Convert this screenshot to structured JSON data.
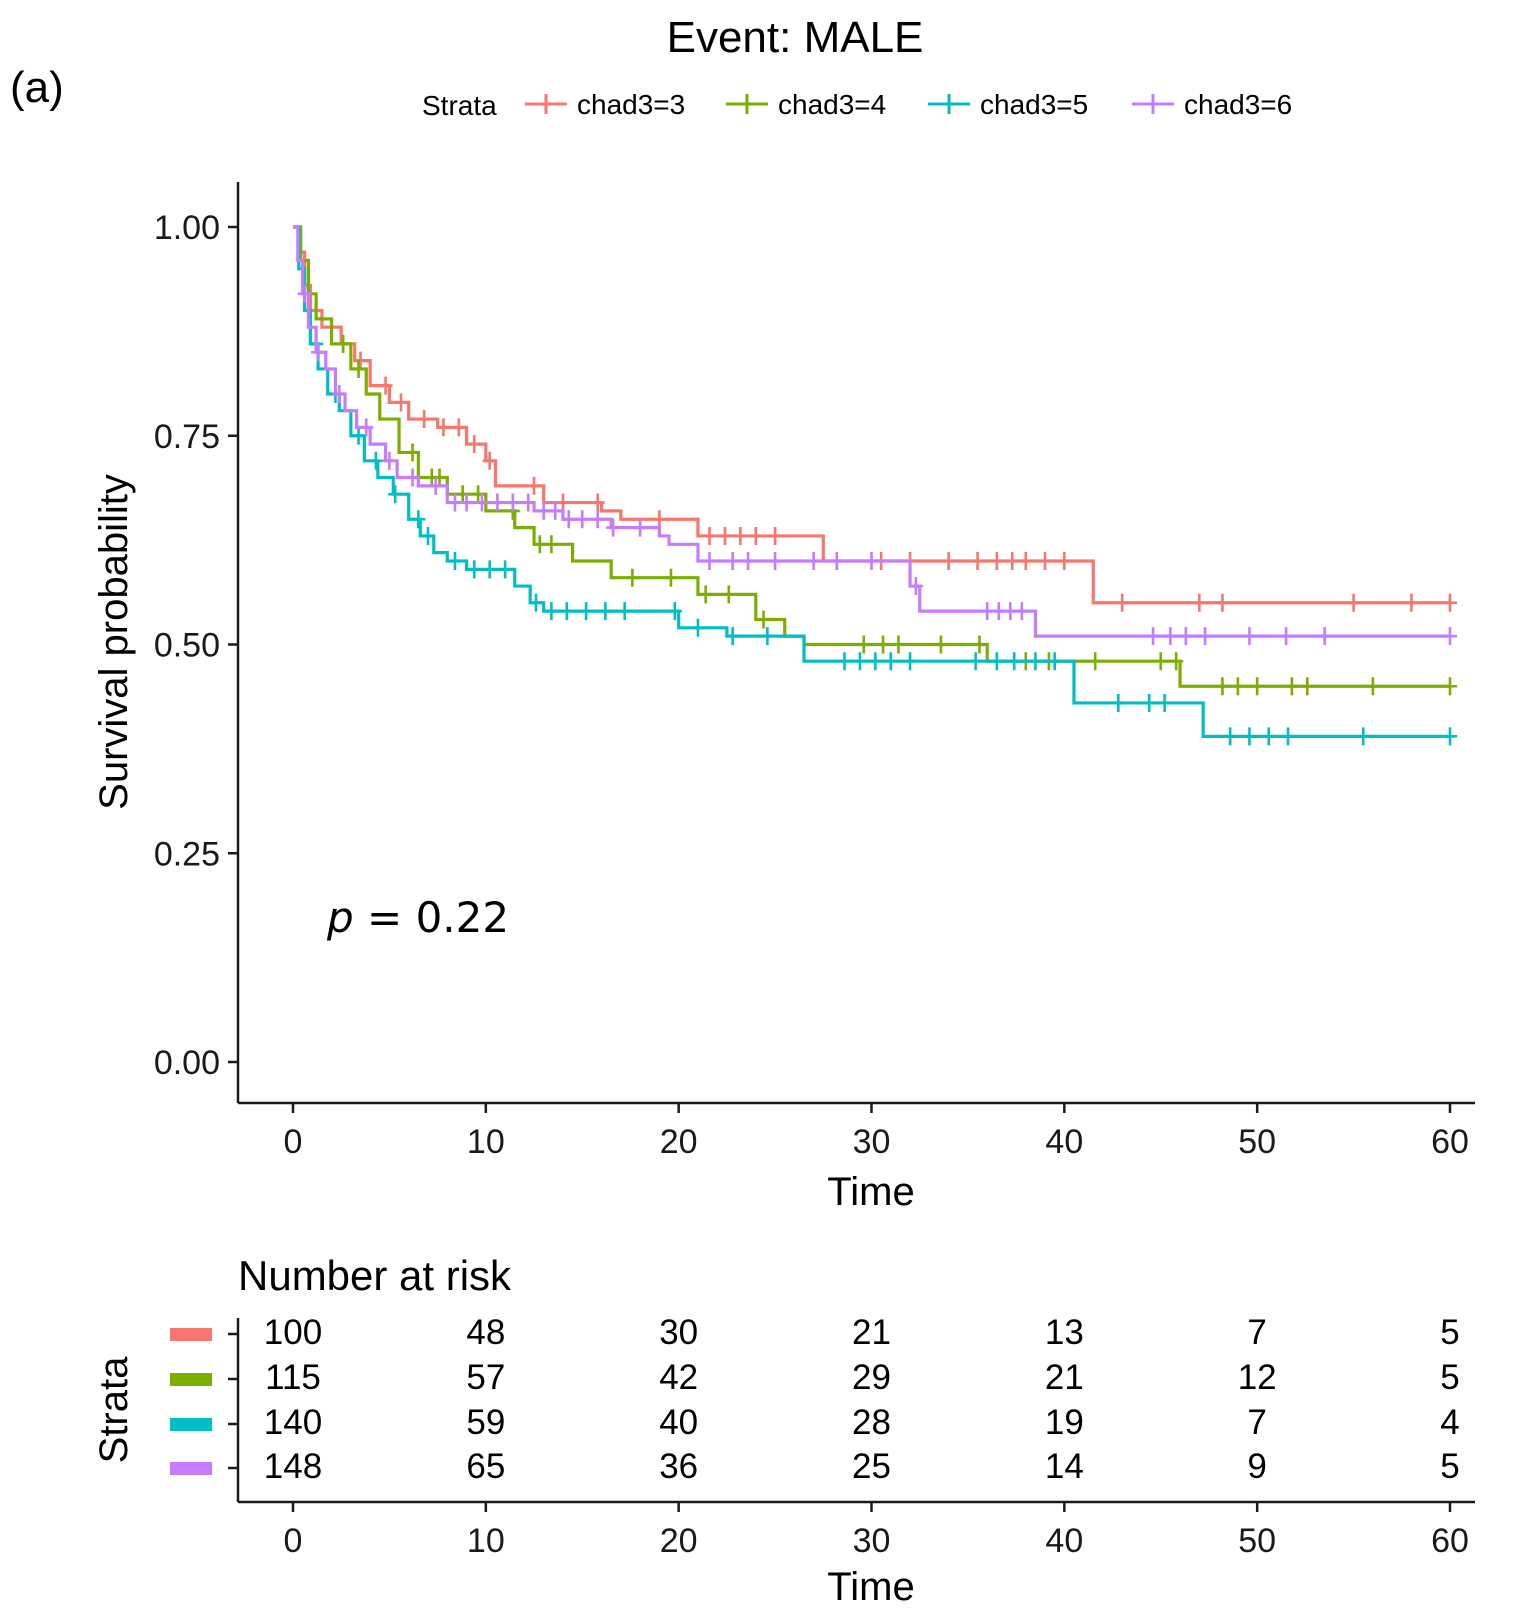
{
  "panel_label": "(a)",
  "chart_data": {
    "type": "line",
    "subtype": "kaplan-meier",
    "title": "Event: MALE",
    "xlabel": "Time",
    "ylabel": "Survival probability",
    "xlim": [
      0,
      60
    ],
    "ylim": [
      0,
      1
    ],
    "x_ticks": [
      0,
      10,
      20,
      30,
      40,
      50,
      60
    ],
    "x_tick_labels": [
      "0",
      "10",
      "20",
      "30",
      "40",
      "50",
      "60"
    ],
    "y_ticks": [
      0,
      0.25,
      0.5,
      0.75,
      1.0
    ],
    "y_tick_labels": [
      "0.00",
      "0.25",
      "0.50",
      "0.75",
      "1.00"
    ],
    "legend": {
      "title": "Strata",
      "placement": "top"
    },
    "annotation": {
      "p_symbol": "p",
      "p_equals": " = 0.22"
    },
    "series": [
      {
        "name": "chad3=3",
        "color": "#F8766D",
        "steps": [
          [
            0,
            1.0
          ],
          [
            0.3,
            0.97
          ],
          [
            0.6,
            0.93
          ],
          [
            0.9,
            0.9
          ],
          [
            1.5,
            0.88
          ],
          [
            2.5,
            0.86
          ],
          [
            3.2,
            0.84
          ],
          [
            4,
            0.81
          ],
          [
            5,
            0.79
          ],
          [
            6,
            0.77
          ],
          [
            7.5,
            0.76
          ],
          [
            9,
            0.74
          ],
          [
            10,
            0.72
          ],
          [
            10.5,
            0.69
          ],
          [
            13,
            0.67
          ],
          [
            16,
            0.66
          ],
          [
            17,
            0.65
          ],
          [
            21,
            0.63
          ],
          [
            27.5,
            0.6
          ],
          [
            41.5,
            0.55
          ],
          [
            60,
            0.55
          ]
        ],
        "censor": [
          2,
          2.6,
          3.5,
          4.8,
          5.6,
          6.8,
          7.8,
          8.6,
          9.4,
          10.2,
          12.5,
          14,
          15.8,
          19,
          21.6,
          22.4,
          23.2,
          24,
          25,
          30.5,
          32,
          34,
          35.5,
          36.5,
          37.3,
          38,
          39,
          40,
          43,
          47,
          48.2,
          55,
          58,
          60
        ]
      },
      {
        "name": "chad3=4",
        "color": "#7CAE00",
        "steps": [
          [
            0,
            1.0
          ],
          [
            0.4,
            0.96
          ],
          [
            0.8,
            0.92
          ],
          [
            1.2,
            0.89
          ],
          [
            2,
            0.86
          ],
          [
            3,
            0.83
          ],
          [
            3.8,
            0.8
          ],
          [
            4.5,
            0.77
          ],
          [
            5.5,
            0.73
          ],
          [
            6.5,
            0.7
          ],
          [
            8,
            0.68
          ],
          [
            10,
            0.66
          ],
          [
            11.5,
            0.64
          ],
          [
            12.5,
            0.62
          ],
          [
            14.5,
            0.6
          ],
          [
            16.5,
            0.58
          ],
          [
            21,
            0.56
          ],
          [
            24,
            0.53
          ],
          [
            25.5,
            0.51
          ],
          [
            26.5,
            0.5
          ],
          [
            36,
            0.48
          ],
          [
            46,
            0.45
          ],
          [
            60,
            0.45
          ]
        ],
        "censor": [
          2.6,
          3.4,
          6.2,
          7.2,
          7.6,
          8.8,
          9.6,
          11.4,
          12.8,
          13.4,
          17.6,
          19.6,
          21.4,
          22.6,
          24.4,
          29.6,
          30.6,
          31.4,
          33.6,
          35.6,
          38,
          39.2,
          41.6,
          45,
          45.8,
          48.2,
          49,
          50,
          51.8,
          52.6,
          56,
          60
        ]
      },
      {
        "name": "chad3=5",
        "color": "#00BFC4",
        "steps": [
          [
            0,
            1.0
          ],
          [
            0.3,
            0.95
          ],
          [
            0.6,
            0.9
          ],
          [
            0.9,
            0.86
          ],
          [
            1.3,
            0.83
          ],
          [
            1.8,
            0.8
          ],
          [
            2.4,
            0.78
          ],
          [
            3,
            0.75
          ],
          [
            3.7,
            0.72
          ],
          [
            4.4,
            0.7
          ],
          [
            5.2,
            0.68
          ],
          [
            6,
            0.65
          ],
          [
            6.6,
            0.63
          ],
          [
            7.3,
            0.61
          ],
          [
            8,
            0.6
          ],
          [
            9,
            0.59
          ],
          [
            11.5,
            0.57
          ],
          [
            12.3,
            0.55
          ],
          [
            13,
            0.54
          ],
          [
            20,
            0.52
          ],
          [
            22.5,
            0.51
          ],
          [
            26.5,
            0.48
          ],
          [
            40.5,
            0.43
          ],
          [
            47.2,
            0.39
          ],
          [
            60,
            0.39
          ]
        ],
        "censor": [
          1.2,
          2.2,
          3.4,
          4.3,
          5.3,
          6.5,
          7,
          8.4,
          9.4,
          10.2,
          11,
          12.6,
          13.4,
          14.2,
          15.2,
          16.2,
          17.2,
          19.8,
          21,
          22.8,
          24.6,
          28.6,
          29.4,
          30.2,
          31,
          32,
          35.4,
          36.5,
          37.4,
          38.5,
          39.5,
          42.8,
          44.4,
          45.2,
          48.6,
          49.6,
          50.6,
          51.6,
          55.5,
          60
        ]
      },
      {
        "name": "chad3=6",
        "color": "#C77CFF",
        "steps": [
          [
            0,
            1.0
          ],
          [
            0.25,
            0.96
          ],
          [
            0.5,
            0.92
          ],
          [
            0.8,
            0.88
          ],
          [
            1.2,
            0.85
          ],
          [
            1.7,
            0.83
          ],
          [
            2.2,
            0.8
          ],
          [
            2.7,
            0.78
          ],
          [
            3.3,
            0.76
          ],
          [
            4,
            0.74
          ],
          [
            4.8,
            0.72
          ],
          [
            5.4,
            0.7
          ],
          [
            6.5,
            0.69
          ],
          [
            8,
            0.67
          ],
          [
            12.5,
            0.66
          ],
          [
            14,
            0.65
          ],
          [
            16.5,
            0.64
          ],
          [
            19,
            0.63
          ],
          [
            19.5,
            0.62
          ],
          [
            21,
            0.6
          ],
          [
            32,
            0.57
          ],
          [
            32.5,
            0.54
          ],
          [
            38.5,
            0.51
          ],
          [
            60,
            0.51
          ]
        ],
        "censor": [
          0.6,
          1.3,
          2.4,
          3.8,
          5,
          6.2,
          7.4,
          8.4,
          9,
          9.8,
          10.6,
          11.4,
          12.2,
          13,
          13.6,
          14.3,
          15,
          15.8,
          16.6,
          18,
          21.6,
          22.8,
          23.6,
          25,
          27,
          28.2,
          30,
          32.3,
          36,
          36.6,
          37.2,
          37.8,
          44.6,
          45.5,
          46.3,
          47.3,
          49.6,
          51.5,
          53.5,
          60
        ]
      }
    ],
    "risk_table": {
      "title": "Number at risk",
      "ylabel": "Strata",
      "xlabel": "Time",
      "times": [
        0,
        10,
        20,
        30,
        40,
        50,
        60
      ],
      "rows": [
        {
          "strata": "chad3=3",
          "values": [
            "100",
            "48",
            "30",
            "21",
            "13",
            "7",
            "5"
          ]
        },
        {
          "strata": "chad3=4",
          "values": [
            "115",
            "57",
            "42",
            "29",
            "21",
            "12",
            "5"
          ]
        },
        {
          "strata": "chad3=5",
          "values": [
            "140",
            "59",
            "40",
            "28",
            "19",
            "7",
            "4"
          ]
        },
        {
          "strata": "chad3=6",
          "values": [
            "148",
            "65",
            "36",
            "25",
            "14",
            "9",
            "5"
          ]
        }
      ]
    }
  }
}
